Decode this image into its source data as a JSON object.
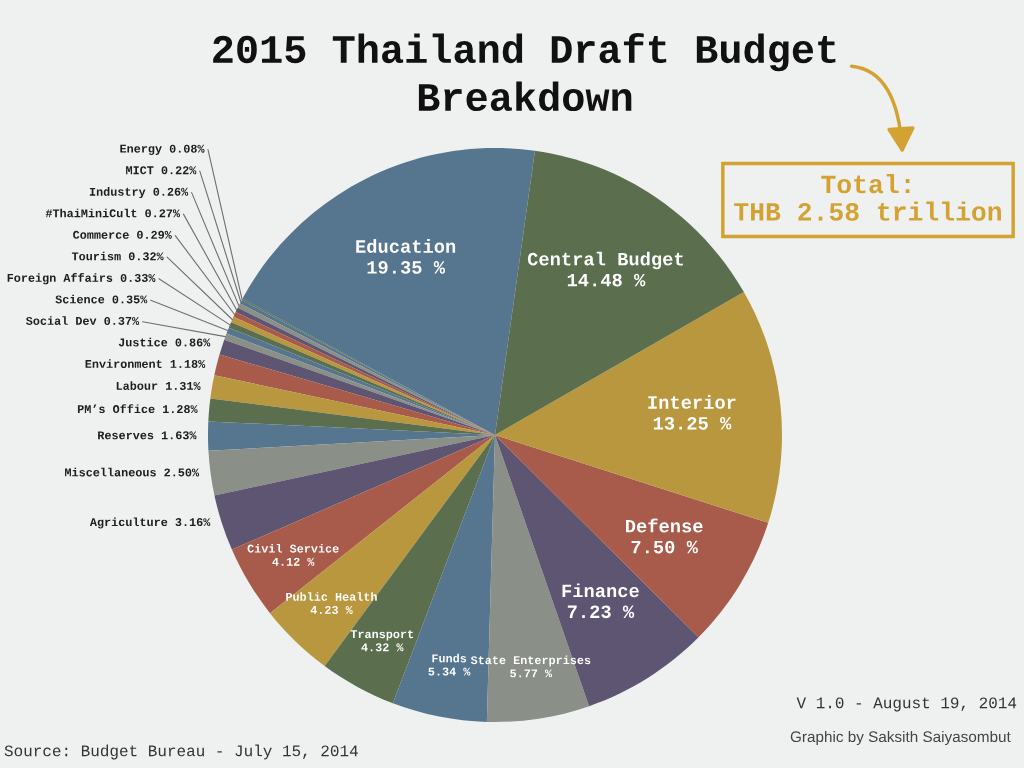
{
  "chart_data": {
    "type": "pie",
    "title": "2015 Thailand Draft Budget\nBreakdown",
    "categories": [
      "Education",
      "Energy",
      "MICT",
      "Industry",
      "#ThaiMiniCult",
      "Commerce",
      "Tourism",
      "Foreign Affairs",
      "Science",
      "Social Dev",
      "Justice",
      "Environment",
      "Labour",
      "PM’s Office",
      "Reserves",
      "Miscellaneous",
      "Agriculture",
      "Civil Service",
      "Public Health",
      "Transport",
      "Funds",
      "State Enterprises",
      "Finance",
      "Defense",
      "Interior",
      "Central Budget"
    ],
    "values": [
      19.35,
      0.08,
      0.22,
      0.26,
      0.27,
      0.29,
      0.32,
      0.33,
      0.35,
      0.37,
      0.86,
      1.18,
      1.31,
      1.28,
      1.63,
      2.5,
      3.16,
      4.12,
      4.23,
      4.32,
      5.34,
      5.77,
      7.23,
      7.5,
      13.25,
      14.48
    ],
    "value_labels": [
      "19.35 %",
      "0.08%",
      "0.22%",
      "0.26%",
      "0.27%",
      "0.29%",
      "0.32%",
      "0.33%",
      "0.35%",
      "0.37%",
      "0.86%",
      "1.18%",
      "1.31%",
      "1.28%",
      "1.63%",
      "2.50%",
      "3.16%",
      "4.12 %",
      "4.23 %",
      "4.32 %",
      "5.34 %",
      "5.77 %",
      "7.23 %",
      "7.50 %",
      "13.25 %",
      "14.48 %"
    ],
    "colors": [
      "#56758f",
      "#5b6f4f",
      "#56758f",
      "#8a8f87",
      "#5d5571",
      "#a95b4b",
      "#b9973f",
      "#5b6f4f",
      "#56758f",
      "#8a8f87",
      "#5d5571",
      "#a95b4b",
      "#b9973f",
      "#5b6f4f",
      "#56758f",
      "#8a8f87",
      "#5d5571",
      "#a95b4b",
      "#b9973f",
      "#5b6f4f",
      "#56758f",
      "#8a8f87",
      "#5d5571",
      "#a95b4b",
      "#b9973f",
      "#5b6f4f"
    ],
    "annotations": [
      "Total:\nTHB 2.58 trillion",
      "Source: Budget Bureau - July 15, 2014",
      "V 1.0 - August 19, 2014",
      "Graphic by Saksith Saiyasombut"
    ]
  }
}
